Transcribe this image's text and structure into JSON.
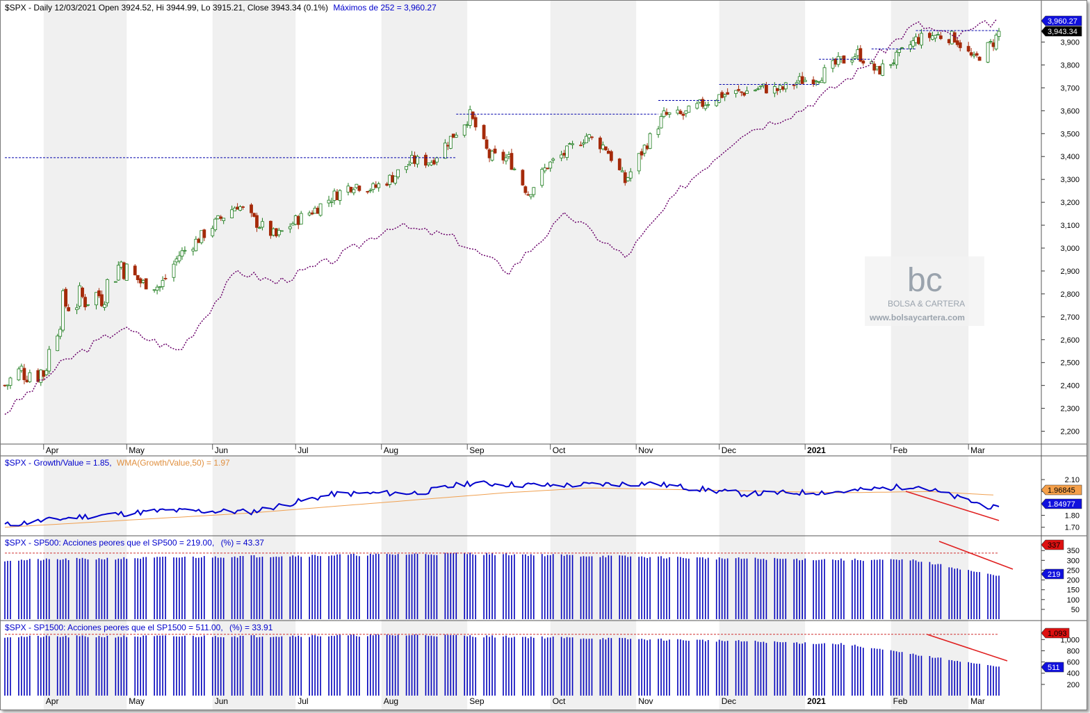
{
  "header": {
    "symbol": "$SPX",
    "main": "$SPX - Daily 12/03/2021 Open 3924.52, Hi 3944.99, Lo 3915.21, Close 3943.34 (0.1%)",
    "max_label": "Máximos de 252 = 3,960.27"
  },
  "months": [
    "Apr",
    "May",
    "Jun",
    "Jul",
    "Aug",
    "Sep",
    "Oct",
    "Nov",
    "Dec",
    "2021",
    "Feb",
    "Mar"
  ],
  "price_axis": {
    "ticks": [
      "3,900",
      "3,800",
      "3,700",
      "3,600",
      "3,500",
      "3,400",
      "3,300",
      "3,200",
      "3,100",
      "3,000",
      "2,900",
      "2,800",
      "2,700",
      "2,600",
      "2,500",
      "2,400",
      "2,300",
      "2,200"
    ],
    "range": [
      2150,
      4020
    ],
    "badge_max": "3,960.27",
    "badge_close": "3,943.34"
  },
  "growth_value": {
    "title_a": "$SPX - Growth/Value = 1.85,",
    "title_b": "WMA(Growth/Value,50) = 1.97",
    "ticks": [
      "2.10",
      "2.00",
      "1.90",
      "1.80",
      "1.70"
    ],
    "range": [
      1.64,
      2.2
    ],
    "badge_wma": "1.96845",
    "badge_val": "1.84977"
  },
  "sp500": {
    "title_a": "$SPX - SP500: Acciones peores que el SP500 = 219.00,",
    "title_b": "(%) = 43.37",
    "ticks": [
      "350",
      "300",
      "250",
      "200",
      "150",
      "100",
      "50"
    ],
    "range": [
      0,
      365
    ],
    "badge_max": "337",
    "badge_last": "219"
  },
  "sp1500": {
    "title_a": "$SPX - SP1500: Acciones peores que el SP1500 = 511.00,",
    "title_b": "(%) = 33.91",
    "ticks": [
      "1,000",
      "800",
      "600",
      "400",
      "200"
    ],
    "range": [
      0,
      1140
    ],
    "badge_max": "1,093",
    "badge_last": "511"
  },
  "watermark": {
    "logo": "bc",
    "name": "BOLSA & CARTERA",
    "url": "www.bolsaycartera.com"
  },
  "colors": {
    "up": "#1a7a1a",
    "down": "#a52a0a",
    "growth": "#0000cc",
    "wma": "#f0a050",
    "bars": "#0000bb",
    "overlay": "#6a006a",
    "trend": "#e02020",
    "dashed": "#0000aa",
    "band": "#f0f0f0"
  },
  "chart_data": [
    {
      "type": "line",
      "name": "price",
      "description_series": "$SPX daily close (approx. weekly samples)",
      "x": [
        "2020-03-18",
        "2020-03-25",
        "2020-04-01",
        "2020-04-08",
        "2020-04-15",
        "2020-04-22",
        "2020-04-29",
        "2020-05-06",
        "2020-05-13",
        "2020-05-20",
        "2020-05-27",
        "2020-06-03",
        "2020-06-10",
        "2020-06-17",
        "2020-06-24",
        "2020-07-01",
        "2020-07-08",
        "2020-07-15",
        "2020-07-22",
        "2020-07-29",
        "2020-08-05",
        "2020-08-12",
        "2020-08-19",
        "2020-08-26",
        "2020-09-02",
        "2020-09-09",
        "2020-09-16",
        "2020-09-23",
        "2020-09-30",
        "2020-10-07",
        "2020-10-14",
        "2020-10-21",
        "2020-10-28",
        "2020-11-04",
        "2020-11-11",
        "2020-11-18",
        "2020-11-25",
        "2020-12-02",
        "2020-12-09",
        "2020-12-16",
        "2020-12-23",
        "2020-12-30",
        "2021-01-06",
        "2021-01-13",
        "2021-01-20",
        "2021-01-27",
        "2021-02-03",
        "2021-02-10",
        "2021-02-17",
        "2021-02-24",
        "2021-03-03",
        "2021-03-10",
        "2021-03-12"
      ],
      "values": [
        2400,
        2470,
        2460,
        2750,
        2780,
        2800,
        2940,
        2850,
        2830,
        2970,
        3040,
        3120,
        3190,
        3110,
        3050,
        3120,
        3170,
        3230,
        3280,
        3260,
        3310,
        3380,
        3380,
        3480,
        3580,
        3400,
        3390,
        3240,
        3360,
        3420,
        3490,
        3440,
        3290,
        3440,
        3580,
        3580,
        3630,
        3670,
        3680,
        3700,
        3690,
        3730,
        3750,
        3810,
        3850,
        3770,
        3830,
        3910,
        3930,
        3920,
        3820,
        3900,
        3943
      ]
    },
    {
      "type": "line",
      "name": "comparison-overlay",
      "x": [
        "2020-03-18",
        "2020-04-08",
        "2020-04-29",
        "2020-05-20",
        "2020-06-10",
        "2020-06-24",
        "2020-07-15",
        "2020-08-05",
        "2020-08-26",
        "2020-09-16",
        "2020-10-07",
        "2020-10-28",
        "2020-11-18",
        "2020-12-09",
        "2020-12-30",
        "2021-01-20",
        "2021-02-10",
        "2021-02-24",
        "2021-03-12"
      ],
      "values": [
        2280,
        2500,
        2650,
        2550,
        2900,
        2850,
        2950,
        3100,
        3050,
        2900,
        3150,
        2960,
        3270,
        3500,
        3600,
        3770,
        3980,
        3920,
        4000
      ]
    },
    {
      "type": "line",
      "name": "growth-value",
      "x": [
        "2020-03",
        "2020-04",
        "2020-05",
        "2020-06",
        "2020-07",
        "2020-08",
        "2020-09",
        "2020-10",
        "2020-11",
        "2020-12",
        "2021-01",
        "2021-02",
        "2021-03"
      ],
      "values": [
        1.72,
        1.79,
        1.84,
        1.83,
        1.98,
        1.99,
        2.07,
        2.05,
        2.07,
        1.98,
        2.0,
        2.05,
        1.85
      ]
    },
    {
      "type": "bar",
      "name": "sp500-worse",
      "last": 219,
      "max": 337
    },
    {
      "type": "bar",
      "name": "sp1500-worse",
      "last": 511,
      "max": 1093
    }
  ]
}
